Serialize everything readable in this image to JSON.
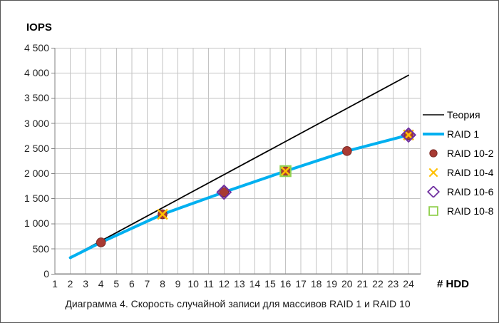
{
  "chart_data": {
    "type": "line",
    "title": "Диаграмма 4. Скорость случайной записи для массивов RAID 1 и RAID 10",
    "xlabel": "# HDD",
    "ylabel": "IOPS",
    "xlim": [
      1,
      24
    ],
    "ylim": [
      0,
      4500
    ],
    "grid": true,
    "legend_position": "right",
    "x_axis": {
      "categories": [
        "1",
        "2",
        "3",
        "4",
        "5",
        "6",
        "7",
        "8",
        "9",
        "10",
        "11",
        "12",
        "13",
        "14",
        "15",
        "16",
        "17",
        "18",
        "19",
        "20",
        "21",
        "22",
        "23",
        "24"
      ]
    },
    "y_axis": {
      "ticks": [
        {
          "value": 0,
          "label": "0"
        },
        {
          "value": 500,
          "label": "500"
        },
        {
          "value": 1000,
          "label": "1 000"
        },
        {
          "value": 1500,
          "label": "1 500"
        },
        {
          "value": 2000,
          "label": "2 000"
        },
        {
          "value": 2500,
          "label": "2 500"
        },
        {
          "value": 3000,
          "label": "3 000"
        },
        {
          "value": 3500,
          "label": "3 500"
        },
        {
          "value": 4000,
          "label": "4 000"
        },
        {
          "value": 4500,
          "label": "4 500"
        }
      ]
    },
    "colors": {
      "grid": "#C3C3C3",
      "axis": "#808080",
      "theory_line": "#000000",
      "raid1_line": "#00B0F0",
      "raid10_2_marker": "#A83A33",
      "raid10_4_marker": "#FFC000",
      "raid10_6_marker": "#7030A0",
      "raid10_8_marker": "#92D050"
    },
    "series": [
      {
        "name": "Теория",
        "type": "line",
        "marker": "none",
        "color": "#000000",
        "line_width": 1.8,
        "points": [
          [
            2,
            330
          ],
          [
            24,
            3960
          ]
        ]
      },
      {
        "name": "RAID 1",
        "type": "line",
        "marker": "none",
        "color": "#00B0F0",
        "line_width": 4,
        "points": [
          [
            2,
            325
          ],
          [
            4,
            630
          ],
          [
            8,
            1190
          ],
          [
            12,
            1630
          ],
          [
            16,
            2050
          ],
          [
            20,
            2450
          ],
          [
            24,
            2770
          ]
        ]
      },
      {
        "name": "RAID 10-2",
        "type": "scatter",
        "marker": "circle",
        "color": "#A83A33",
        "edge": "#7A2B26",
        "points": [
          [
            4,
            630
          ],
          [
            8,
            1190
          ],
          [
            12,
            1630
          ],
          [
            16,
            2050
          ],
          [
            20,
            2450
          ],
          [
            24,
            2770
          ]
        ]
      },
      {
        "name": "RAID 10-4",
        "type": "scatter",
        "marker": "x",
        "color": "#FFC000",
        "points": [
          [
            8,
            1190
          ],
          [
            16,
            2050
          ],
          [
            24,
            2770
          ]
        ]
      },
      {
        "name": "RAID 10-6",
        "type": "scatter",
        "marker": "diamond",
        "color": "#7030A0",
        "points": [
          [
            12,
            1630
          ],
          [
            24,
            2770
          ]
        ]
      },
      {
        "name": "RAID 10-8",
        "type": "scatter",
        "marker": "square",
        "color": "#92D050",
        "points": [
          [
            16,
            2050
          ]
        ]
      }
    ]
  }
}
